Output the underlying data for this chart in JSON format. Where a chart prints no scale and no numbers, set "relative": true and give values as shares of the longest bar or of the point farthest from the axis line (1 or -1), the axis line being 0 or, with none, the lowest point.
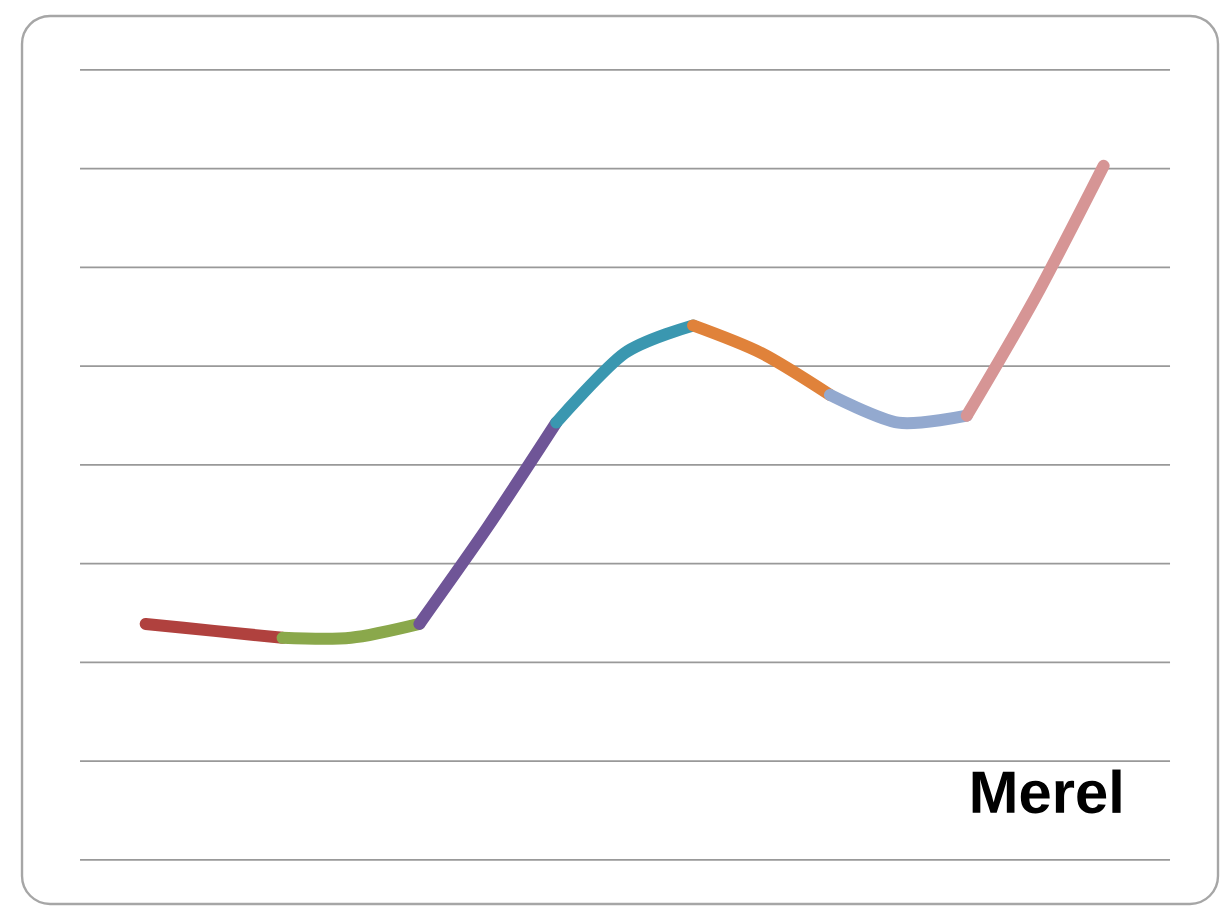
{
  "chart_data": {
    "type": "line",
    "relative": true,
    "grid": "y",
    "annotations": [
      "Merel"
    ],
    "categories": [
      null,
      null,
      null,
      null,
      null,
      null,
      null,
      null,
      null,
      null,
      null,
      null,
      null,
      null,
      null
    ],
    "series": [
      {
        "color": "#b0413e",
        "values": [
          0.34,
          0.33,
          0.32,
          null,
          null,
          null,
          null,
          null,
          null,
          null,
          null,
          null,
          null,
          null,
          null
        ]
      },
      {
        "color": "#8aa84b",
        "values": [
          null,
          null,
          0.32,
          0.32,
          0.34,
          null,
          null,
          null,
          null,
          null,
          null,
          null,
          null,
          null,
          null
        ]
      },
      {
        "color": "#6f5597",
        "values": [
          null,
          null,
          null,
          null,
          0.34,
          0.48,
          0.63,
          null,
          null,
          null,
          null,
          null,
          null,
          null,
          null
        ]
      },
      {
        "color": "#3a97b0",
        "values": [
          null,
          null,
          null,
          null,
          null,
          null,
          0.63,
          0.73,
          0.77,
          null,
          null,
          null,
          null,
          null,
          null
        ]
      },
      {
        "color": "#e0823a",
        "values": [
          null,
          null,
          null,
          null,
          null,
          null,
          null,
          null,
          0.77,
          0.73,
          0.67,
          null,
          null,
          null,
          null
        ]
      },
      {
        "color": "#93a9cf",
        "values": [
          null,
          null,
          null,
          null,
          null,
          null,
          null,
          null,
          null,
          null,
          0.67,
          0.63,
          0.64,
          null,
          null
        ]
      },
      {
        "color": "#d69595",
        "values": [
          null,
          null,
          null,
          null,
          null,
          null,
          null,
          null,
          null,
          null,
          null,
          null,
          0.64,
          0.81,
          1.0
        ]
      }
    ]
  }
}
